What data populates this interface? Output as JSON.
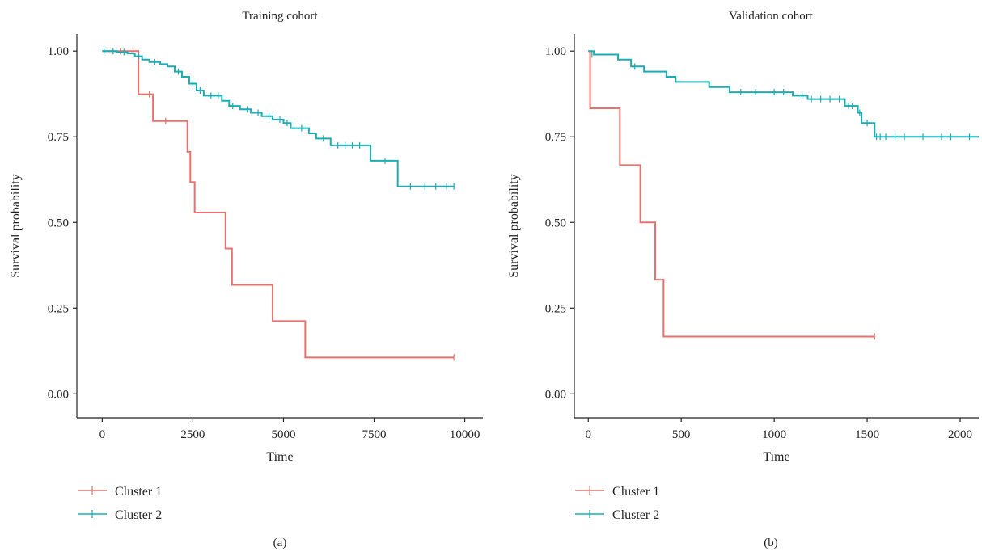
{
  "chart_data": [
    {
      "type": "line",
      "title": "Training cohort",
      "panel_label": "(a)",
      "xlabel": "Time",
      "ylabel": "Survival probability",
      "xlim": [
        -700,
        10500
      ],
      "ylim": [
        -0.07,
        1.05
      ],
      "xticks": [
        0,
        2500,
        5000,
        7500,
        10000
      ],
      "yticks": [
        0,
        0.25,
        0.5,
        0.75,
        1.0
      ],
      "xtick_labels": [
        "0",
        "2500",
        "5000",
        "7500",
        "10000"
      ],
      "ytick_labels": [
        "0.00",
        "0.25",
        "0.50",
        "0.75",
        "1.00"
      ],
      "legend_position": "bottom-left",
      "grid": false,
      "series": [
        {
          "name": "Cluster 1",
          "color": "#E8716D",
          "steps": [
            [
              0,
              1.0
            ],
            [
              1000,
              0.874
            ],
            [
              1400,
              0.796
            ],
            [
              2350,
              0.706
            ],
            [
              2430,
              0.618
            ],
            [
              2550,
              0.529
            ],
            [
              3400,
              0.424
            ],
            [
              3580,
              0.318
            ],
            [
              4700,
              0.212
            ],
            [
              5600,
              0.106
            ],
            [
              9700,
              0.106
            ]
          ],
          "censored": [
            [
              500,
              1.0
            ],
            [
              850,
              1.0
            ],
            [
              1300,
              0.874
            ],
            [
              1750,
              0.796
            ],
            [
              9700,
              0.106
            ]
          ]
        },
        {
          "name": "Cluster 2",
          "color": "#1AAEB4",
          "steps": [
            [
              0,
              1.0
            ],
            [
              400,
              0.997
            ],
            [
              700,
              0.993
            ],
            [
              900,
              0.985
            ],
            [
              1100,
              0.975
            ],
            [
              1300,
              0.968
            ],
            [
              1600,
              0.962
            ],
            [
              1800,
              0.955
            ],
            [
              2000,
              0.94
            ],
            [
              2200,
              0.925
            ],
            [
              2400,
              0.905
            ],
            [
              2600,
              0.885
            ],
            [
              2800,
              0.87
            ],
            [
              3300,
              0.855
            ],
            [
              3500,
              0.84
            ],
            [
              3800,
              0.83
            ],
            [
              4100,
              0.82
            ],
            [
              4400,
              0.81
            ],
            [
              4700,
              0.8
            ],
            [
              5000,
              0.79
            ],
            [
              5200,
              0.775
            ],
            [
              5700,
              0.76
            ],
            [
              5900,
              0.745
            ],
            [
              6300,
              0.725
            ],
            [
              7400,
              0.68
            ],
            [
              8150,
              0.605
            ],
            [
              9700,
              0.605
            ]
          ],
          "censored": [
            [
              50,
              1.0
            ],
            [
              300,
              1.0
            ],
            [
              600,
              0.997
            ],
            [
              1000,
              0.985
            ],
            [
              1450,
              0.968
            ],
            [
              2100,
              0.94
            ],
            [
              2500,
              0.905
            ],
            [
              2700,
              0.885
            ],
            [
              3000,
              0.87
            ],
            [
              3200,
              0.87
            ],
            [
              3600,
              0.84
            ],
            [
              4000,
              0.83
            ],
            [
              4300,
              0.82
            ],
            [
              4600,
              0.81
            ],
            [
              4900,
              0.8
            ],
            [
              5100,
              0.79
            ],
            [
              5500,
              0.775
            ],
            [
              6100,
              0.745
            ],
            [
              6500,
              0.725
            ],
            [
              6700,
              0.725
            ],
            [
              6900,
              0.725
            ],
            [
              7100,
              0.725
            ],
            [
              7800,
              0.68
            ],
            [
              8500,
              0.605
            ],
            [
              8900,
              0.605
            ],
            [
              9200,
              0.605
            ],
            [
              9500,
              0.605
            ],
            [
              9700,
              0.605
            ]
          ]
        }
      ]
    },
    {
      "type": "line",
      "title": "Validation cohort",
      "panel_label": "(b)",
      "xlabel": "Time",
      "ylabel": "Survival probability",
      "xlim": [
        -75,
        2100
      ],
      "ylim": [
        -0.07,
        1.05
      ],
      "xticks": [
        0,
        500,
        1000,
        1500,
        2000
      ],
      "yticks": [
        0,
        0.25,
        0.5,
        0.75,
        1.0
      ],
      "xtick_labels": [
        "0",
        "500",
        "1000",
        "1500",
        "2000"
      ],
      "ytick_labels": [
        "0.00",
        "0.25",
        "0.50",
        "0.75",
        "1.00"
      ],
      "legend_position": "bottom-left",
      "grid": false,
      "series": [
        {
          "name": "Cluster 1",
          "color": "#E8716D",
          "steps": [
            [
              0,
              1.0
            ],
            [
              10,
              0.833
            ],
            [
              170,
              0.667
            ],
            [
              280,
              0.5
            ],
            [
              360,
              0.333
            ],
            [
              405,
              0.167
            ],
            [
              1540,
              0.167
            ]
          ],
          "censored": [
            [
              1540,
              0.167
            ]
          ]
        },
        {
          "name": "Cluster 2",
          "color": "#1AAEB4",
          "steps": [
            [
              0,
              1.0
            ],
            [
              30,
              0.99
            ],
            [
              160,
              0.975
            ],
            [
              230,
              0.955
            ],
            [
              300,
              0.94
            ],
            [
              420,
              0.925
            ],
            [
              470,
              0.91
            ],
            [
              650,
              0.895
            ],
            [
              760,
              0.88
            ],
            [
              1100,
              0.87
            ],
            [
              1180,
              0.86
            ],
            [
              1380,
              0.84
            ],
            [
              1450,
              0.82
            ],
            [
              1470,
              0.79
            ],
            [
              1540,
              0.75
            ],
            [
              2100,
              0.75
            ]
          ],
          "censored": [
            [
              20,
              0.99
            ],
            [
              250,
              0.955
            ],
            [
              820,
              0.88
            ],
            [
              900,
              0.88
            ],
            [
              1000,
              0.88
            ],
            [
              1050,
              0.88
            ],
            [
              1150,
              0.87
            ],
            [
              1200,
              0.86
            ],
            [
              1250,
              0.86
            ],
            [
              1300,
              0.86
            ],
            [
              1350,
              0.86
            ],
            [
              1400,
              0.84
            ],
            [
              1420,
              0.84
            ],
            [
              1460,
              0.82
            ],
            [
              1500,
              0.79
            ],
            [
              1550,
              0.75
            ],
            [
              1570,
              0.75
            ],
            [
              1600,
              0.75
            ],
            [
              1650,
              0.75
            ],
            [
              1700,
              0.75
            ],
            [
              1800,
              0.75
            ],
            [
              1900,
              0.75
            ],
            [
              1950,
              0.75
            ],
            [
              2050,
              0.75
            ]
          ]
        }
      ]
    }
  ]
}
